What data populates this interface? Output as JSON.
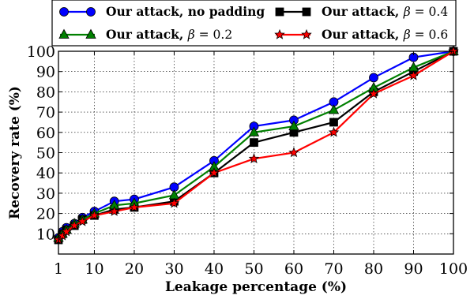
{
  "chart_data": {
    "type": "line",
    "title": "",
    "xlabel": "Leakage percentage (%)",
    "ylabel": "Recovery rate (%)",
    "x_scale": "linear",
    "xlim": [
      1,
      100
    ],
    "ylim": [
      0,
      100
    ],
    "x_ticks": [
      "1",
      "10",
      "20",
      "30",
      "40",
      "50",
      "60",
      "70",
      "80",
      "90",
      "100"
    ],
    "y_ticks": [
      "10",
      "20",
      "30",
      "40",
      "50",
      "60",
      "70",
      "80",
      "90",
      "100"
    ],
    "grid": true,
    "legend_position": "top, above plot",
    "x": [
      1,
      2,
      3,
      5,
      7,
      10,
      15,
      20,
      30,
      40,
      50,
      60,
      70,
      80,
      90,
      100
    ],
    "series": [
      {
        "name": "Our attack, no padding",
        "legend_main": "Our attack, no padding",
        "legend_greek": "",
        "legend_num": "",
        "color": "#0000ff",
        "marker": "circle",
        "values": [
          8,
          11,
          13,
          15,
          18,
          21,
          26,
          27,
          33,
          46,
          63,
          66,
          75,
          87,
          97,
          100
        ]
      },
      {
        "name": "Our attack, β = 0.4",
        "legend_main": "Our attack, ",
        "legend_greek": "β",
        "legend_num": " = 0.4",
        "color": "#000000",
        "marker": "square",
        "values": [
          7,
          10,
          12,
          14,
          17,
          19,
          22,
          23,
          26,
          40,
          55,
          60,
          65,
          80,
          90,
          100
        ]
      },
      {
        "name": "Our attack, β = 0.2",
        "legend_main": "Our attack, ",
        "legend_greek": "β",
        "legend_num": " = 0.2",
        "color": "#008000",
        "marker": "triangle",
        "values": [
          8,
          10,
          12,
          15,
          17,
          20,
          24,
          25,
          29,
          43,
          60,
          63,
          71,
          82,
          92,
          100
        ]
      },
      {
        "name": "Our attack, β = 0.6",
        "legend_main": "Our attack, ",
        "legend_greek": "β",
        "legend_num": " = 0.6",
        "color": "#ff0000",
        "marker": "star",
        "values": [
          7,
          9,
          11,
          14,
          16,
          19,
          21,
          23,
          25,
          40,
          47,
          50,
          60,
          79,
          88,
          100
        ]
      }
    ]
  }
}
